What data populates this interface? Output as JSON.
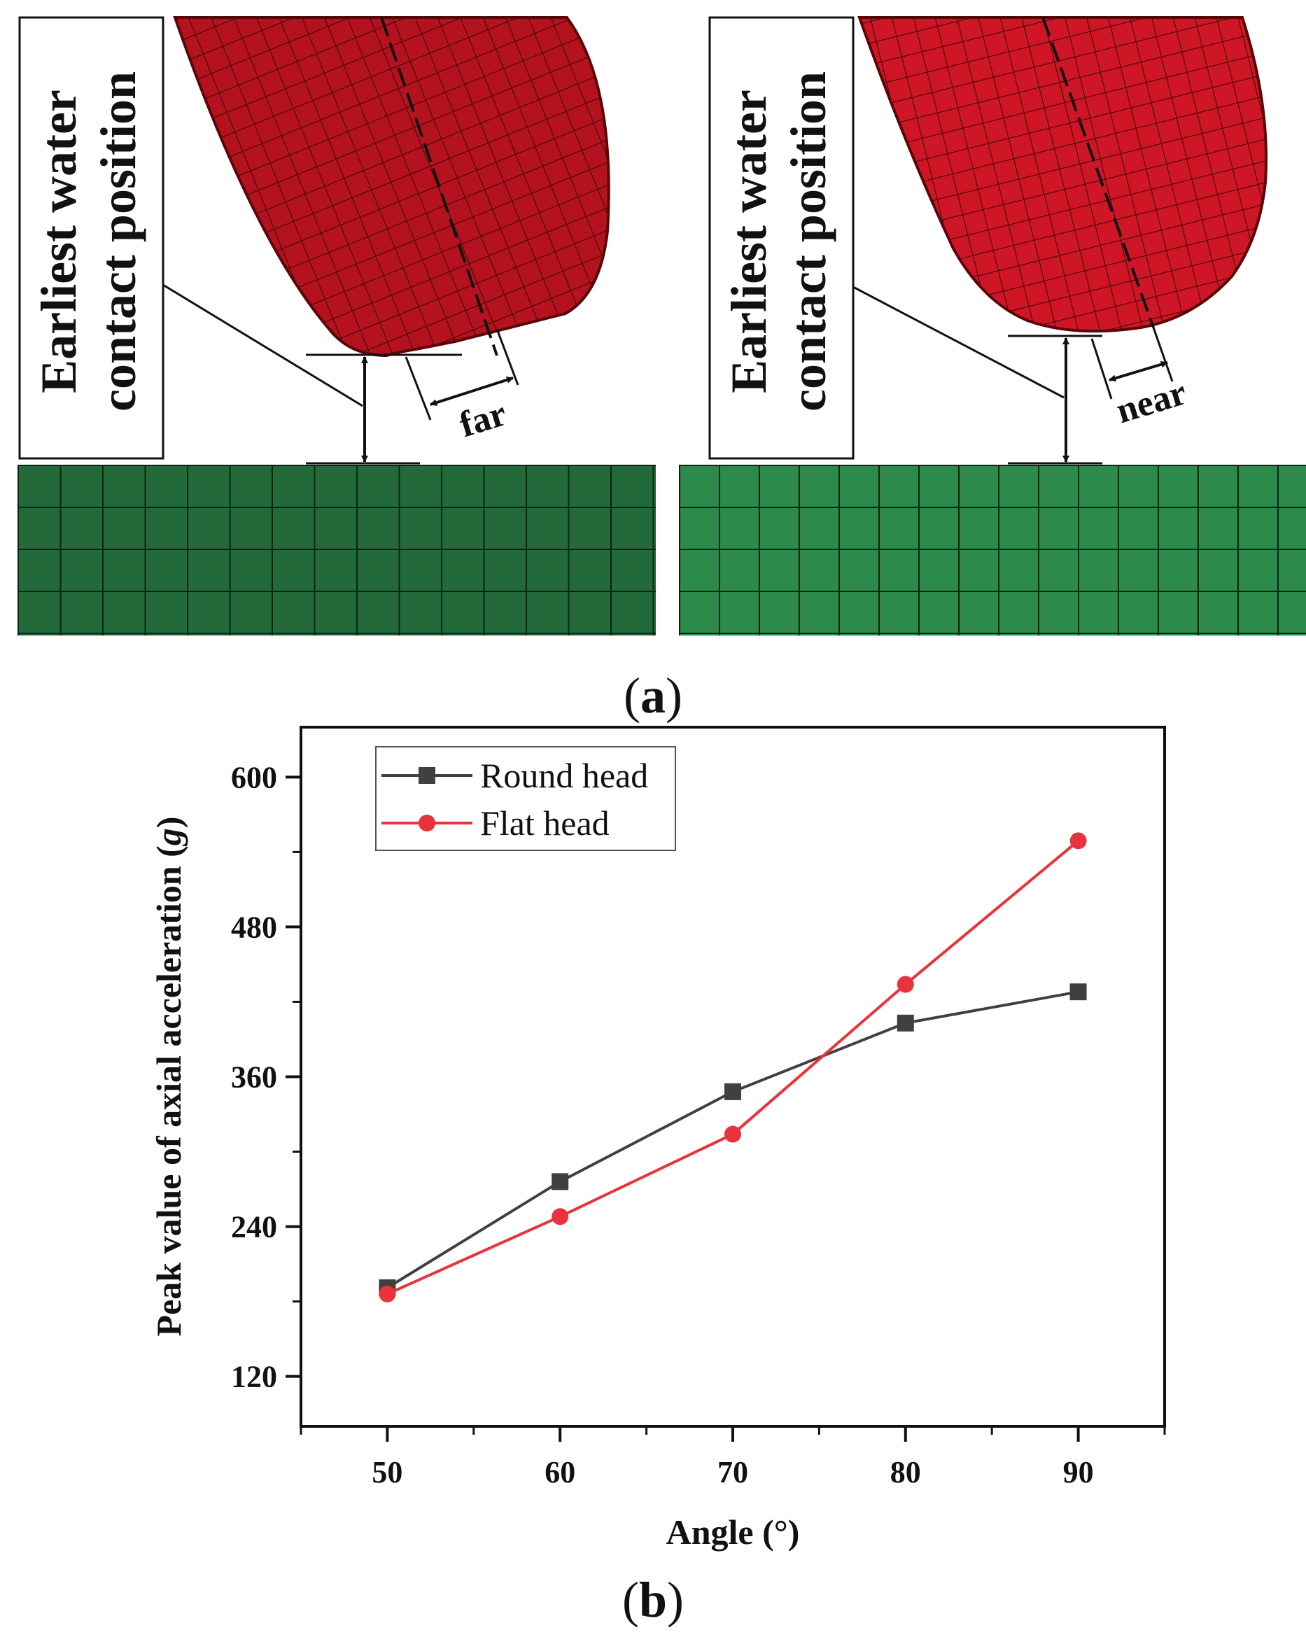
{
  "panel_a": {
    "caption": {
      "open": "(",
      "letter": "a",
      "close": ")"
    },
    "left": {
      "callout_line1": "Earliest water",
      "callout_line2": "contact position",
      "distance_label": "far"
    },
    "right": {
      "callout_line1": "Earliest water",
      "callout_line2": "contact position",
      "distance_label": "near"
    },
    "colors": {
      "body": "#b4121e",
      "body_edge": "#5a0608",
      "water": "#2d7a44",
      "water_grid": "#0f2a16"
    }
  },
  "panel_b": {
    "caption": {
      "open": "(",
      "letter": "b",
      "close": ")"
    }
  },
  "chart_data": {
    "type": "line",
    "x": [
      50,
      60,
      70,
      80,
      90
    ],
    "xlabel": "Angle (°)",
    "ylabel_prefix": "Peak value of axial acceleration (",
    "ylabel_unit": "g",
    "ylabel_suffix": ")",
    "xlim": [
      45,
      95
    ],
    "ylim": [
      80,
      640
    ],
    "x_ticks": [
      50,
      60,
      70,
      80,
      90
    ],
    "x_tick_labels": [
      "50",
      "60",
      "70",
      "80",
      "90"
    ],
    "y_ticks": [
      120,
      240,
      360,
      480,
      600
    ],
    "y_tick_labels": [
      "120",
      "240",
      "360",
      "480",
      "600"
    ],
    "legend_position": "top-left",
    "series": [
      {
        "name": "Round head",
        "marker": "square",
        "color": "#404040",
        "values": [
          191,
          276,
          348,
          403,
          428
        ]
      },
      {
        "name": "Flat head",
        "marker": "circle",
        "color": "#e8323c",
        "values": [
          186,
          248,
          314,
          434,
          549
        ]
      }
    ]
  }
}
